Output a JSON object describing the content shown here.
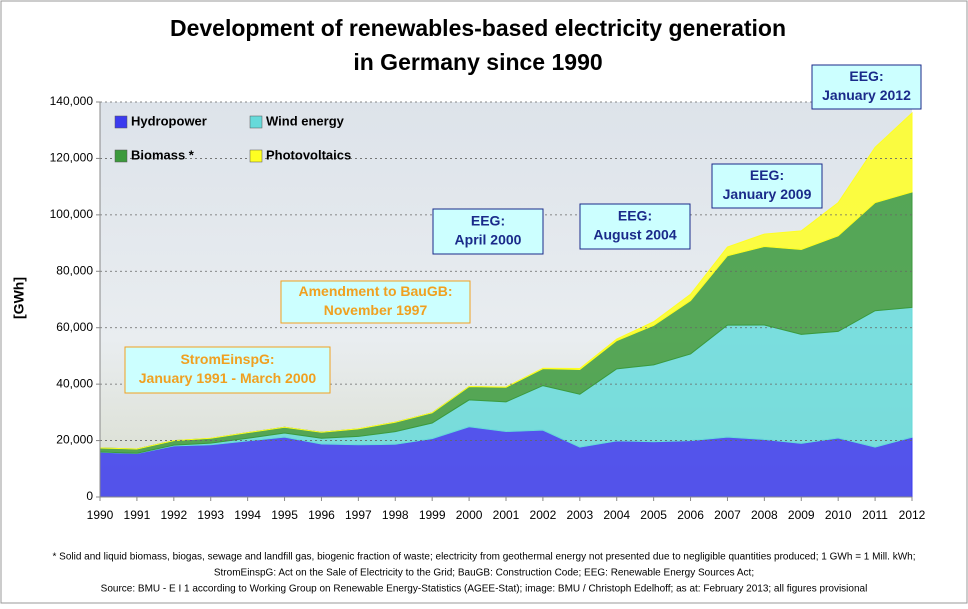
{
  "chart_data": {
    "type": "stacked-area",
    "title": [
      "Development of renewables-based electricity generation",
      "in Germany since 1990"
    ],
    "ylabel": "[GWh]",
    "categories": [
      "1990",
      "1991",
      "1992",
      "1993",
      "1994",
      "1995",
      "1996",
      "1997",
      "1998",
      "1999",
      "2000",
      "2001",
      "2002",
      "2003",
      "2004",
      "2005",
      "2006",
      "2007",
      "2008",
      "2009",
      "2010",
      "2011",
      "2012"
    ],
    "series": [
      {
        "name": "Hydropower",
        "color": "#3b3bef",
        "values": [
          15900,
          15400,
          18100,
          18500,
          19900,
          21200,
          18800,
          18500,
          18700,
          20700,
          24900,
          23200,
          23700,
          17700,
          19900,
          19600,
          20000,
          21200,
          20400,
          19000,
          20900,
          17700,
          21200
        ]
      },
      {
        "name": "Wind energy",
        "color": "#66dada",
        "values": [
          71,
          100,
          275,
          600,
          909,
          1500,
          2032,
          2966,
          4489,
          5528,
          9513,
          10509,
          15786,
          18713,
          25509,
          27229,
          30710,
          39713,
          40574,
          38639,
          37793,
          48315,
          46000
        ]
      },
      {
        "name": "Biomass *",
        "color": "#3c9a3c",
        "values": [
          1400,
          1500,
          1600,
          1700,
          2000,
          2000,
          2100,
          2700,
          3300,
          3600,
          4700,
          5200,
          6000,
          8800,
          10000,
          14000,
          18900,
          24600,
          27800,
          30100,
          33900,
          38300,
          40900
        ]
      },
      {
        "name": "Photovoltaics",
        "color": "#ffff22",
        "values": [
          1,
          2,
          3,
          6,
          8,
          11,
          16,
          26,
          32,
          42,
          64,
          76,
          162,
          313,
          556,
          1282,
          2220,
          3075,
          4420,
          6583,
          11729,
          19599,
          28000
        ]
      }
    ],
    "ylim": [
      0,
      140000
    ],
    "yticks": [
      0,
      {
        "value": 20000,
        "label": "20,000"
      },
      {
        "value": 40000,
        "label": "40,000"
      },
      {
        "value": 60000,
        "label": "60,000"
      },
      {
        "value": 80000,
        "label": "80,000"
      },
      {
        "value": 100000,
        "label": "100,000"
      },
      {
        "value": 120000,
        "label": "120,000"
      },
      {
        "value": 140000,
        "label": "140,000"
      }
    ],
    "grid": true,
    "legend": "top-left",
    "annotations": [
      {
        "lines": [
          "StromEinspG:",
          "January 1991 - March 2000"
        ],
        "color": "#f0a020"
      },
      {
        "lines": [
          "Amendment to BauGB:",
          "November 1997"
        ],
        "color": "#f0a020"
      },
      {
        "lines": [
          "EEG:",
          "April 2000"
        ],
        "color": "#1a2a8a"
      },
      {
        "lines": [
          "EEG:",
          "August 2004"
        ],
        "color": "#1a2a8a"
      },
      {
        "lines": [
          "EEG:",
          "January 2009"
        ],
        "color": "#1a2a8a"
      },
      {
        "lines": [
          "EEG:",
          "January 2012"
        ],
        "color": "#1a2a8a"
      }
    ],
    "footnote": [
      "* Solid and liquid biomass, biogas, sewage and landfill gas, biogenic fraction of waste; electricity from geothermal energy not presented due to negligible quantities produced; 1 GWh = 1 Mill. kWh;",
      "StromEinspG: Act on the Sale of Electricity to the Grid; BauGB: Construction Code; EEG: Renewable Energy Sources Act;",
      "Source: BMU - E I 1 according to Working Group on Renewable Energy-Statistics (AGEE-Stat); image: BMU / Christoph Edelhoff; as at: February 2013; all figures provisional"
    ]
  }
}
